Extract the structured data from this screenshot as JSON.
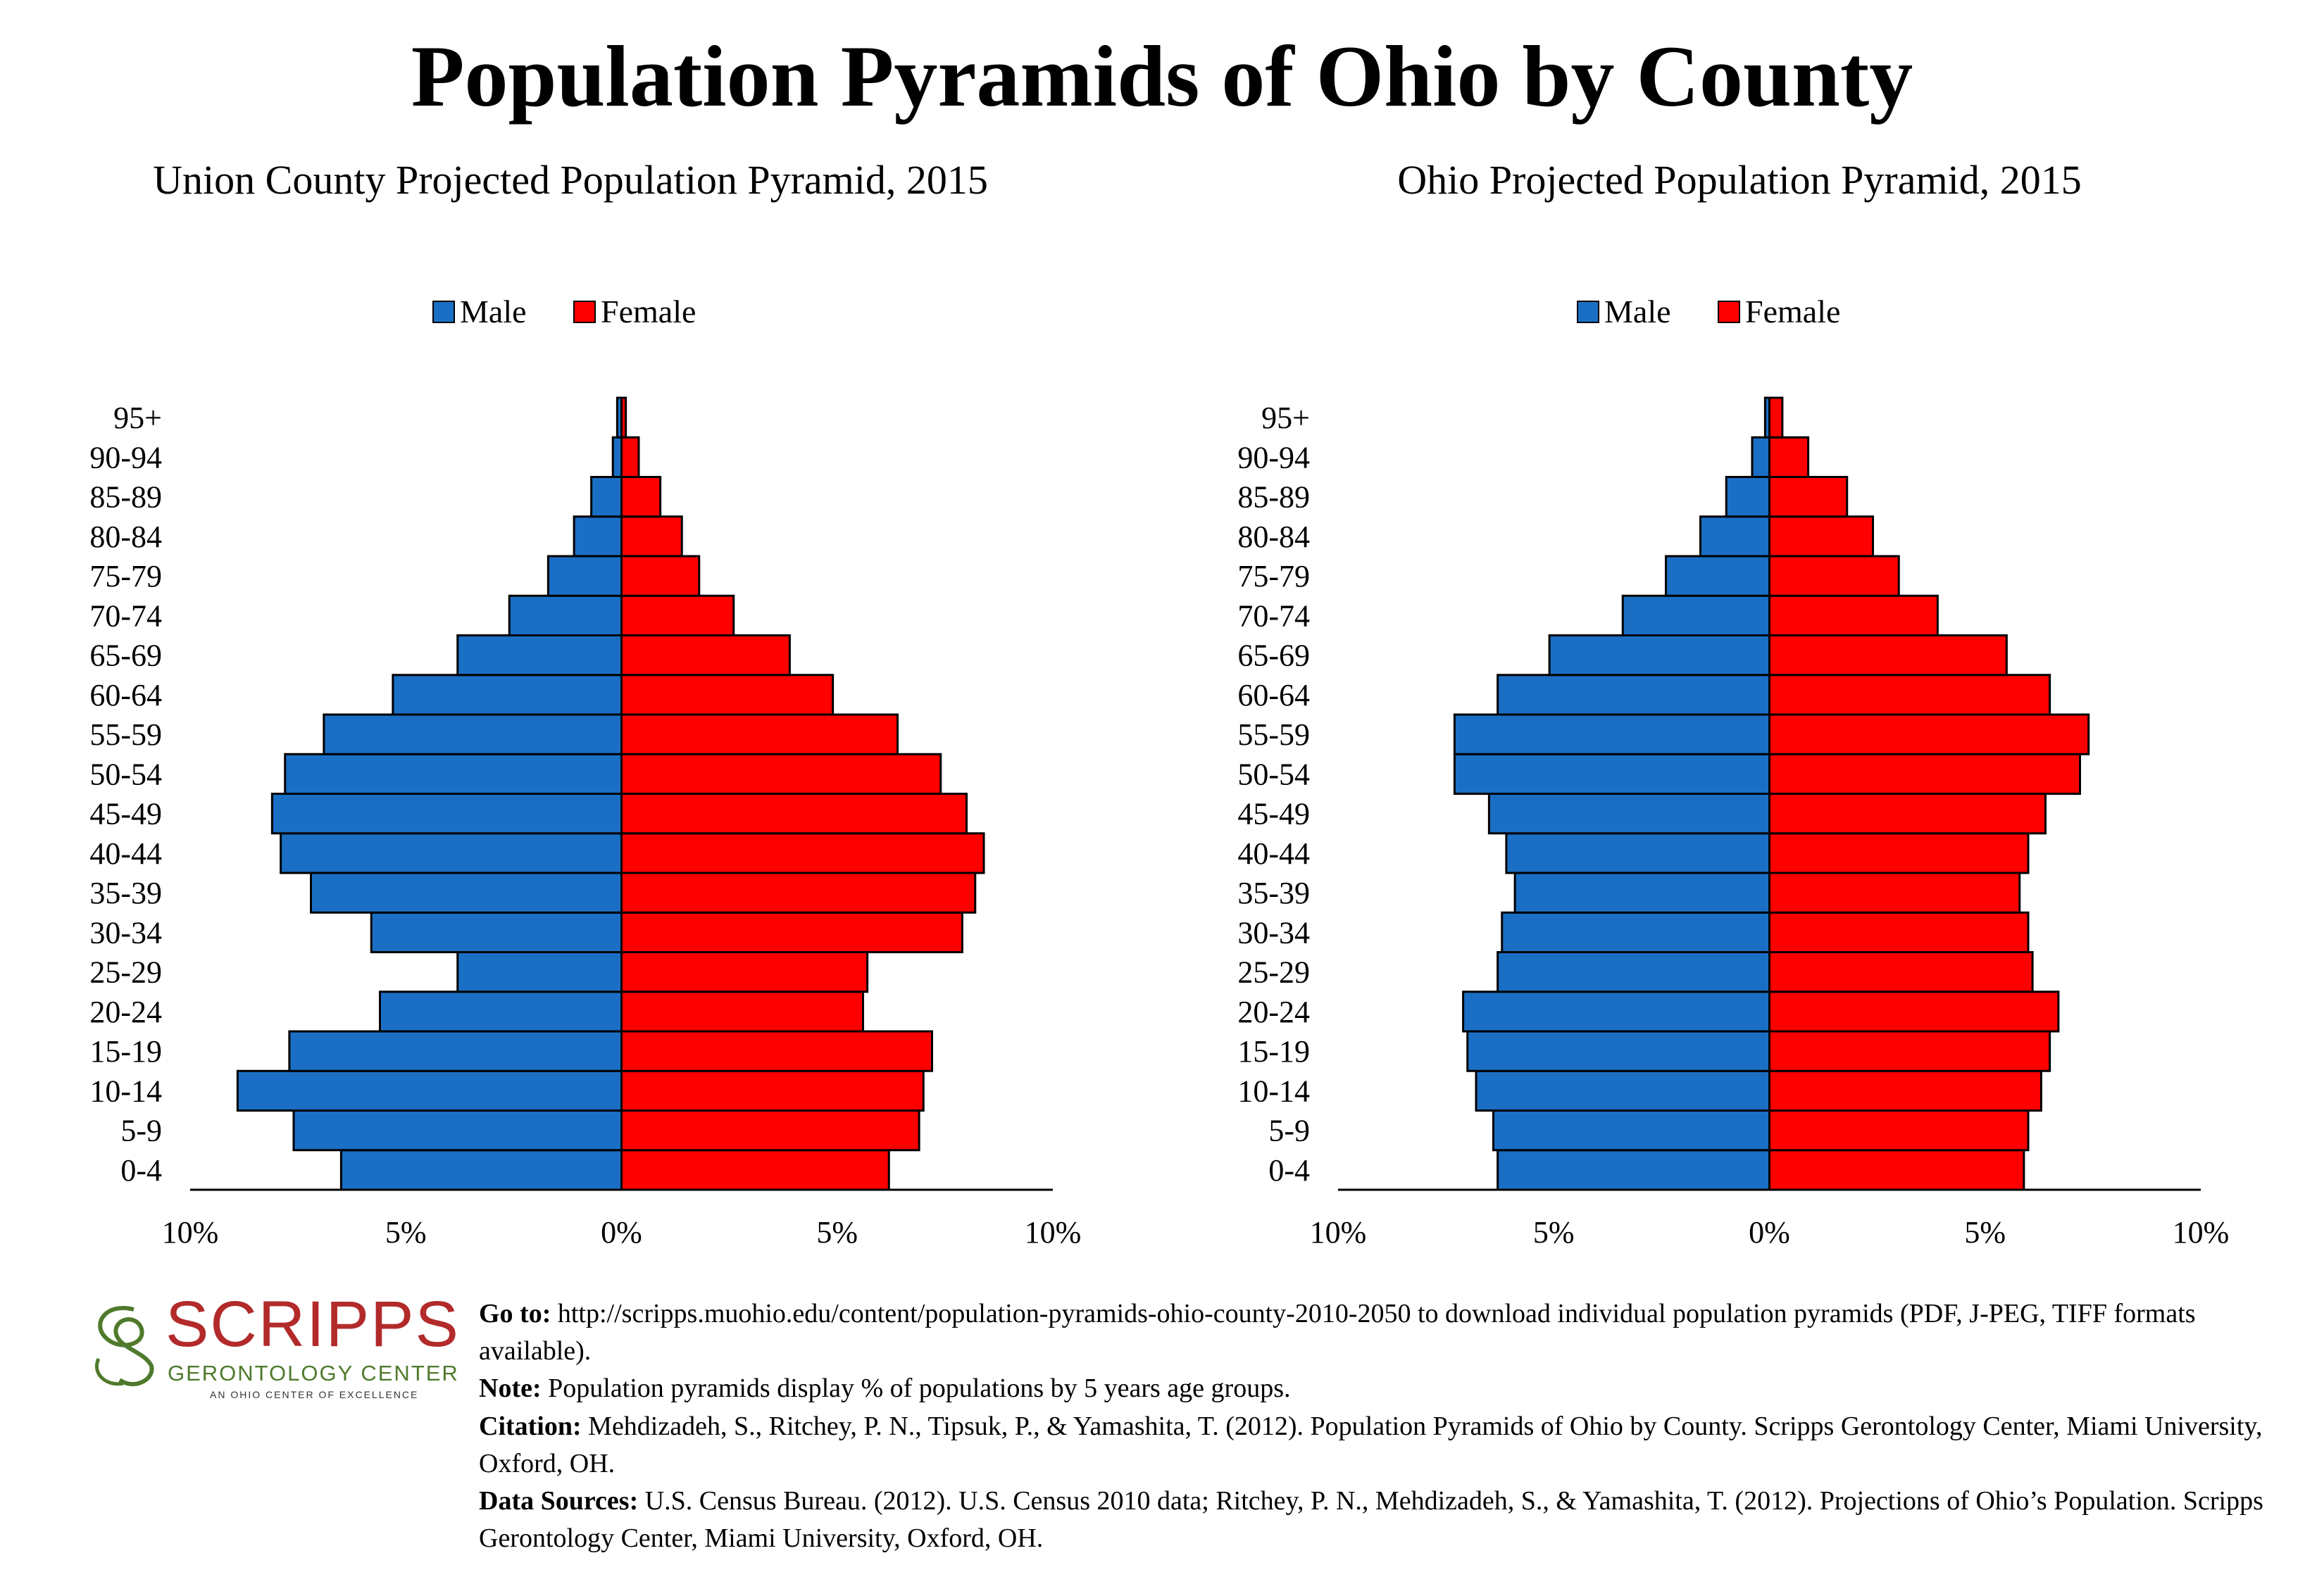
{
  "title": "Population Pyramids of Ohio by County",
  "colors": {
    "male": "#1a6fc4",
    "female": "#ff0000",
    "axis": "#000000"
  },
  "chart_data": [
    {
      "type": "bar",
      "subtitle": "Union County Projected Population Pyramid, 2015",
      "legend": [
        "Male",
        "Female"
      ],
      "legend_position": "top-center",
      "categories": [
        "0-4",
        "5-9",
        "10-14",
        "15-19",
        "20-24",
        "25-29",
        "30-34",
        "35-39",
        "40-44",
        "45-49",
        "50-54",
        "55-59",
        "60-64",
        "65-69",
        "70-74",
        "75-79",
        "80-84",
        "85-89",
        "90-94",
        "95+"
      ],
      "series": [
        {
          "name": "Male",
          "values": [
            6.5,
            7.6,
            8.9,
            7.7,
            5.6,
            3.8,
            5.8,
            7.2,
            7.9,
            8.1,
            7.8,
            6.9,
            5.3,
            3.8,
            2.6,
            1.7,
            1.1,
            0.7,
            0.2,
            0.1
          ]
        },
        {
          "name": "Female",
          "values": [
            6.2,
            6.9,
            7.0,
            7.2,
            5.6,
            5.7,
            7.9,
            8.2,
            8.4,
            8.0,
            7.4,
            6.4,
            4.9,
            3.9,
            2.6,
            1.8,
            1.4,
            0.9,
            0.4,
            0.1
          ]
        }
      ],
      "xlim": [
        -10,
        10
      ],
      "tick_labels": [
        "10%",
        "5%",
        "0%",
        "5%",
        "10%"
      ],
      "grid": false
    },
    {
      "type": "bar",
      "subtitle": "Ohio Projected Population Pyramid, 2015",
      "legend": [
        "Male",
        "Female"
      ],
      "legend_position": "top-center",
      "categories": [
        "0-4",
        "5-9",
        "10-14",
        "15-19",
        "20-24",
        "25-29",
        "30-34",
        "35-39",
        "40-44",
        "45-49",
        "50-54",
        "55-59",
        "60-64",
        "65-69",
        "70-74",
        "75-79",
        "80-84",
        "85-89",
        "90-94",
        "95+"
      ],
      "series": [
        {
          "name": "Male",
          "values": [
            6.3,
            6.4,
            6.8,
            7.0,
            7.1,
            6.3,
            6.2,
            5.9,
            6.1,
            6.5,
            7.3,
            7.3,
            6.3,
            5.1,
            3.4,
            2.4,
            1.6,
            1.0,
            0.4,
            0.1
          ]
        },
        {
          "name": "Female",
          "values": [
            5.9,
            6.0,
            6.3,
            6.5,
            6.7,
            6.1,
            6.0,
            5.8,
            6.0,
            6.4,
            7.2,
            7.4,
            6.5,
            5.5,
            3.9,
            3.0,
            2.4,
            1.8,
            0.9,
            0.3
          ]
        }
      ],
      "xlim": [
        -10,
        10
      ],
      "tick_labels": [
        "10%",
        "5%",
        "0%",
        "5%",
        "10%"
      ],
      "grid": false
    }
  ],
  "footer": {
    "goto_label": "Go to:",
    "goto_text": " http://scripps.muohio.edu/content/population-pyramids-ohio-county-2010-2050 to download individual population pyramids (PDF, J-PEG, TIFF formats available).",
    "note_label": "Note:",
    "note_text": " Population pyramids display % of populations by 5 years age groups.",
    "citation_label": "Citation:",
    "citation_text": " Mehdizadeh, S., Ritchey, P. N., Tipsuk, P., & Yamashita, T. (2012). Population Pyramids of Ohio by County. Scripps Gerontology Center, Miami University, Oxford, OH.",
    "sources_label": "Data Sources:",
    "sources_text": " U.S. Census Bureau. (2012). U.S. Census 2010 data; Ritchey, P. N., Mehdizadeh, S., & Yamashita, T. (2012). Projections of Ohio’s Population. Scripps Gerontology Center, Miami University, Oxford, OH."
  },
  "logo": {
    "name": "SCRIPPS",
    "sub": "GERONTOLOGY CENTER",
    "tagline": "AN OHIO CENTER OF EXCELLENCE"
  }
}
